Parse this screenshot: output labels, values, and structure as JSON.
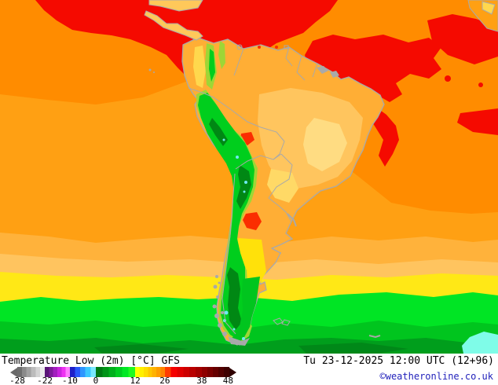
{
  "legend": {
    "product_label": "Temperature Low (2m) [°C] GFS",
    "datetime_label": "Tu 23-12-2025 12:00 UTC (12+96)",
    "copyright": "©weatheronline.co.uk",
    "copyright_color": "#2222BB",
    "colorbar": {
      "unit": "°C",
      "ticks": [
        {
          "label": "-28",
          "pos": 0
        },
        {
          "label": "-22",
          "pos": 13
        },
        {
          "label": "-10",
          "pos": 24.8
        },
        {
          "label": "0",
          "pos": 37
        },
        {
          "label": "12",
          "pos": 55.6
        },
        {
          "label": "26",
          "pos": 69.6
        },
        {
          "label": "38",
          "pos": 87
        },
        {
          "label": "48",
          "pos": 99.4
        }
      ],
      "groups": [
        {
          "name": "gray",
          "from": 0,
          "to": 13,
          "colors": [
            "#6E6E6E",
            "#8A8A8A",
            "#A2A2A2",
            "#BCBCBC",
            "#D4D4D4",
            "#ECECEC"
          ]
        },
        {
          "name": "purple",
          "from": 13,
          "to": 24.8,
          "colors": [
            "#5A1678",
            "#7C1A9A",
            "#A21EBE",
            "#C822DE",
            "#EE30F2",
            "#FF7CFF"
          ]
        },
        {
          "name": "blue",
          "from": 24.8,
          "to": 37,
          "colors": [
            "#1E1EC8",
            "#2858FA",
            "#2E96FF",
            "#3CC8FF",
            "#78E8FF"
          ]
        },
        {
          "name": "green",
          "from": 37,
          "to": 55.6,
          "colors": [
            "#007814",
            "#009418",
            "#00B01C",
            "#00CC20",
            "#00E824",
            "#20FA20"
          ]
        },
        {
          "name": "warm",
          "from": 55.6,
          "to": 69.6,
          "colors": [
            "#FFFF00",
            "#FFF000",
            "#FFDC00",
            "#FFC600",
            "#FFB200",
            "#FF9C00",
            "#FF8400"
          ]
        },
        {
          "name": "red",
          "from": 69.6,
          "to": 87,
          "colors": [
            "#FF3C00",
            "#F50000",
            "#E10000",
            "#CD0000",
            "#B90000",
            "#A50000"
          ]
        },
        {
          "name": "darkred",
          "from": 87,
          "to": 100,
          "colors": [
            "#8F0000",
            "#7A0000",
            "#660000",
            "#520000",
            "#3E0000"
          ]
        }
      ]
    }
  },
  "map": {
    "palette": {
      "red": "#F50A00",
      "darkOrange": "#FF8C00",
      "midOrange": "#FFA013",
      "lightOrange": "#FFB23B",
      "paleOrange": "#FFC45F",
      "yellow": "#FFE816",
      "brightGreen": "#00E524",
      "midGreen": "#00C51E",
      "darkGreen": "#009E1C",
      "deepGreen": "#008818",
      "cyan": "#7FFCE8",
      "landBase": "#FFAE35",
      "landPale": "#FFC55E",
      "landPaler": "#FFDC82",
      "landYellow": "#FFD966",
      "colYellow": "#FFD84D",
      "wedgeYellow": "#FFE10A",
      "andesFringe": "#9ED636",
      "andesGreen": "#00CE1D",
      "andesDark": "#008814",
      "landRed": "#FB2D00",
      "lakeCyan": "#6FE9F2",
      "coast": "#A9A9A9",
      "landCA": "#FFC85A"
    }
  }
}
